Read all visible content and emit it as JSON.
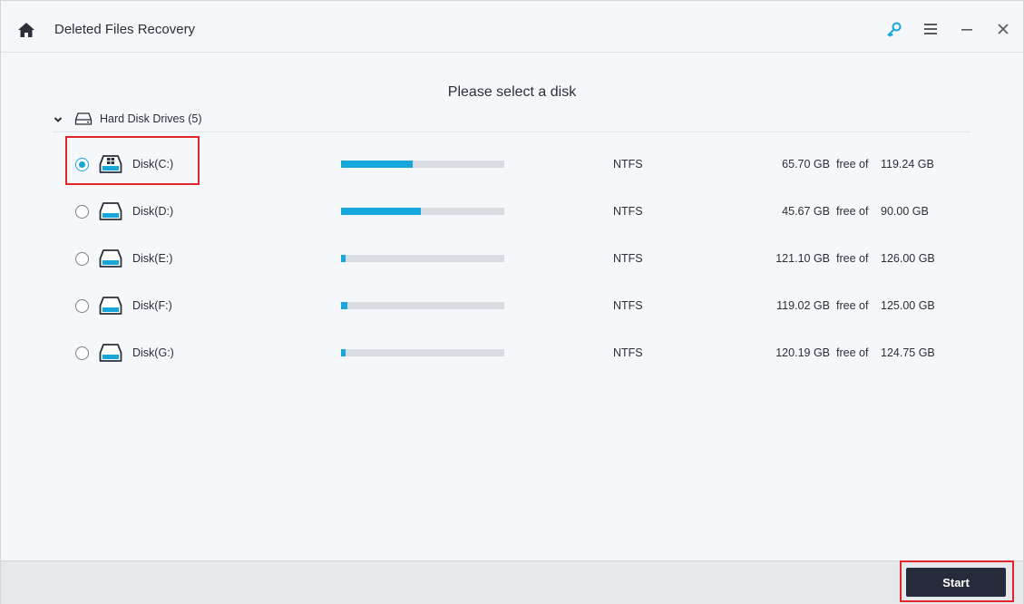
{
  "app": {
    "title": "Deleted Files Recovery",
    "icons": [
      "home-icon",
      "key-icon",
      "menu-icon",
      "minimize-icon",
      "close-icon"
    ],
    "accent_color": "#16a7dc",
    "highlight_color": "#e0262b"
  },
  "main": {
    "heading": "Please select a disk",
    "group": {
      "label": "Hard Disk Drives (5)",
      "expanded": true
    },
    "free_of_label": "free of",
    "disks": [
      {
        "name": "Disk(C:)",
        "fs": "NTFS",
        "free": "65.70 GB",
        "total": "119.24 GB",
        "used_fraction": 0.44,
        "selected": true,
        "system": true
      },
      {
        "name": "Disk(D:)",
        "fs": "NTFS",
        "free": "45.67 GB",
        "total": "90.00 GB",
        "used_fraction": 0.49,
        "selected": false,
        "system": false
      },
      {
        "name": "Disk(E:)",
        "fs": "NTFS",
        "free": "121.10 GB",
        "total": "126.00 GB",
        "used_fraction": 0.03,
        "selected": false,
        "system": false
      },
      {
        "name": "Disk(F:)",
        "fs": "NTFS",
        "free": "119.02 GB",
        "total": "125.00 GB",
        "used_fraction": 0.04,
        "selected": false,
        "system": false
      },
      {
        "name": "Disk(G:)",
        "fs": "NTFS",
        "free": "120.19 GB",
        "total": "124.75 GB",
        "used_fraction": 0.03,
        "selected": false,
        "system": false
      }
    ]
  },
  "footer": {
    "start_label": "Start"
  }
}
